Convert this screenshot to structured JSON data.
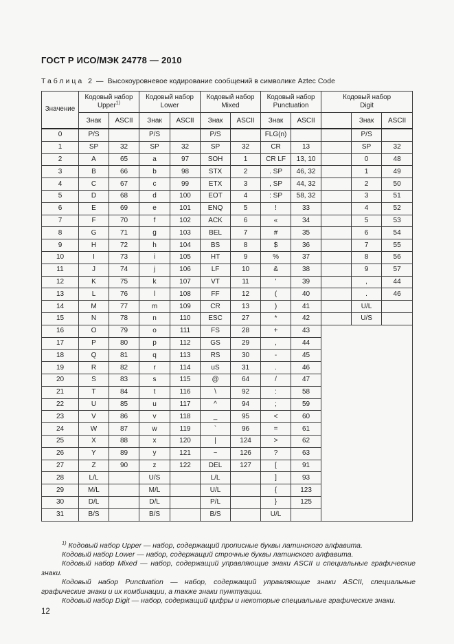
{
  "doc": {
    "header": "ГОСТ Р ИСО/МЭК 24778 — 2010",
    "page_number": "12"
  },
  "caption": {
    "label": "Таблица 2",
    "dash": "—",
    "text": "Высокоуровневое кодирование сообщений в символике Aztec Code"
  },
  "table": {
    "value_header": "Значение",
    "sub_znak": "Знак",
    "sub_ascii": "ASCII",
    "groups": [
      {
        "line1": "Кодовый набор",
        "line2": "Upper",
        "sup": "1)"
      },
      {
        "line1": "Кодовый набор",
        "line2": "Lower"
      },
      {
        "line1": "Кодовый набор",
        "line2": "Mixed"
      },
      {
        "line1": "Кодовый набор",
        "line2": "Punctuation"
      },
      {
        "line1": "Кодовый набор",
        "line2": "Digit"
      }
    ],
    "rows": [
      {
        "v": "0",
        "c": [
          "P/S",
          "",
          "P/S",
          "",
          "P/S",
          "",
          "FLG(n)",
          "",
          "",
          "P/S",
          ""
        ]
      },
      {
        "v": "1",
        "c": [
          "SP",
          "32",
          "SP",
          "32",
          "SP",
          "32",
          "CR",
          "13",
          "",
          "SP",
          "32"
        ]
      },
      {
        "v": "2",
        "c": [
          "A",
          "65",
          "a",
          "97",
          "SOH",
          "1",
          "CR LF",
          "13, 10",
          "",
          "0",
          "48"
        ]
      },
      {
        "v": "3",
        "c": [
          "B",
          "66",
          "b",
          "98",
          "STX",
          "2",
          ". SP",
          "46, 32",
          "",
          "1",
          "49"
        ]
      },
      {
        "v": "4",
        "c": [
          "C",
          "67",
          "c",
          "99",
          "ETX",
          "3",
          ", SP",
          "44, 32",
          "",
          "2",
          "50"
        ]
      },
      {
        "v": "5",
        "c": [
          "D",
          "68",
          "d",
          "100",
          "EOT",
          "4",
          ": SP",
          "58, 32",
          "",
          "3",
          "51"
        ]
      },
      {
        "v": "6",
        "c": [
          "E",
          "69",
          "e",
          "101",
          "ENQ",
          "5",
          "!",
          "33",
          "",
          "4",
          "52"
        ]
      },
      {
        "v": "7",
        "c": [
          "F",
          "70",
          "f",
          "102",
          "ACK",
          "6",
          "«",
          "34",
          "",
          "5",
          "53"
        ]
      },
      {
        "v": "8",
        "c": [
          "G",
          "71",
          "g",
          "103",
          "BEL",
          "7",
          "#",
          "35",
          "",
          "6",
          "54"
        ]
      },
      {
        "v": "9",
        "c": [
          "H",
          "72",
          "h",
          "104",
          "BS",
          "8",
          "$",
          "36",
          "",
          "7",
          "55"
        ]
      },
      {
        "v": "10",
        "c": [
          "I",
          "73",
          "i",
          "105",
          "HT",
          "9",
          "%",
          "37",
          "",
          "8",
          "56"
        ]
      },
      {
        "v": "11",
        "c": [
          "J",
          "74",
          "j",
          "106",
          "LF",
          "10",
          "&",
          "38",
          "",
          "9",
          "57"
        ]
      },
      {
        "v": "12",
        "c": [
          "K",
          "75",
          "k",
          "107",
          "VT",
          "11",
          "'",
          "39",
          "",
          ",",
          "44"
        ]
      },
      {
        "v": "13",
        "c": [
          "L",
          "76",
          "l",
          "108",
          "FF",
          "12",
          "(",
          "40",
          "",
          ".",
          "46"
        ]
      },
      {
        "v": "14",
        "c": [
          "M",
          "77",
          "m",
          "109",
          "CR",
          "13",
          ")",
          "41",
          "",
          "U/L",
          ""
        ]
      },
      {
        "v": "15",
        "c": [
          "N",
          "78",
          "n",
          "110",
          "ESC",
          "27",
          "*",
          "42",
          "",
          "U/S",
          ""
        ]
      },
      {
        "v": "16",
        "c": [
          "O",
          "79",
          "o",
          "111",
          "FS",
          "28",
          "+",
          "43"
        ]
      },
      {
        "v": "17",
        "c": [
          "P",
          "80",
          "p",
          "112",
          "GS",
          "29",
          ",",
          "44"
        ]
      },
      {
        "v": "18",
        "c": [
          "Q",
          "81",
          "q",
          "113",
          "RS",
          "30",
          "-",
          "45"
        ]
      },
      {
        "v": "19",
        "c": [
          "R",
          "82",
          "r",
          "114",
          "uS",
          "31",
          ".",
          "46"
        ]
      },
      {
        "v": "20",
        "c": [
          "S",
          "83",
          "s",
          "115",
          "@",
          "64",
          "/",
          "47"
        ]
      },
      {
        "v": "21",
        "c": [
          "T",
          "84",
          "t",
          "116",
          "\\",
          "92",
          ":",
          "58"
        ]
      },
      {
        "v": "22",
        "c": [
          "U",
          "85",
          "u",
          "117",
          "^",
          "94",
          ";",
          "59"
        ]
      },
      {
        "v": "23",
        "c": [
          "V",
          "86",
          "v",
          "118",
          "_",
          "95",
          "<",
          "60"
        ]
      },
      {
        "v": "24",
        "c": [
          "W",
          "87",
          "w",
          "119",
          "`",
          "96",
          "=",
          "61"
        ]
      },
      {
        "v": "25",
        "c": [
          "X",
          "88",
          "x",
          "120",
          "|",
          "124",
          ">",
          "62"
        ]
      },
      {
        "v": "26",
        "c": [
          "Y",
          "89",
          "y",
          "121",
          "~",
          "126",
          "?",
          "63"
        ]
      },
      {
        "v": "27",
        "c": [
          "Z",
          "90",
          "z",
          "122",
          "DEL",
          "127",
          "[",
          "91"
        ]
      },
      {
        "v": "28",
        "c": [
          "L/L",
          "",
          "U/S",
          "",
          "L/L",
          "",
          "]",
          "93"
        ]
      },
      {
        "v": "29",
        "c": [
          "M/L",
          "",
          "M/L",
          "",
          "U/L",
          "",
          "{",
          "123"
        ]
      },
      {
        "v": "30",
        "c": [
          "D/L",
          "",
          "D/L",
          "",
          "P/L",
          "",
          "}",
          "125"
        ]
      },
      {
        "v": "31",
        "c": [
          "B/S",
          "",
          "B/S",
          "",
          "B/S",
          "",
          "U/L",
          ""
        ]
      }
    ]
  },
  "footnotes": {
    "sup": "1)",
    "items": [
      "Кодовый набор Upper — набор, содержащий прописные буквы латинского алфавита.",
      "Кодовый набор Lower — набор, содержащий строчные буквы латинского алфавита.",
      "Кодовый набор Mixed — набор, содержащий управляющие знаки ASCII и специальные графические знаки.",
      "Кодовый набор Punctuation — набор, содержащий управляющие знаки ASCII, специальные графические знаки и их комбинации, а также знаки пунктуации.",
      "Кодовый набор Digit — набор, содержащий цифры и некоторые специальные графические знаки."
    ]
  }
}
